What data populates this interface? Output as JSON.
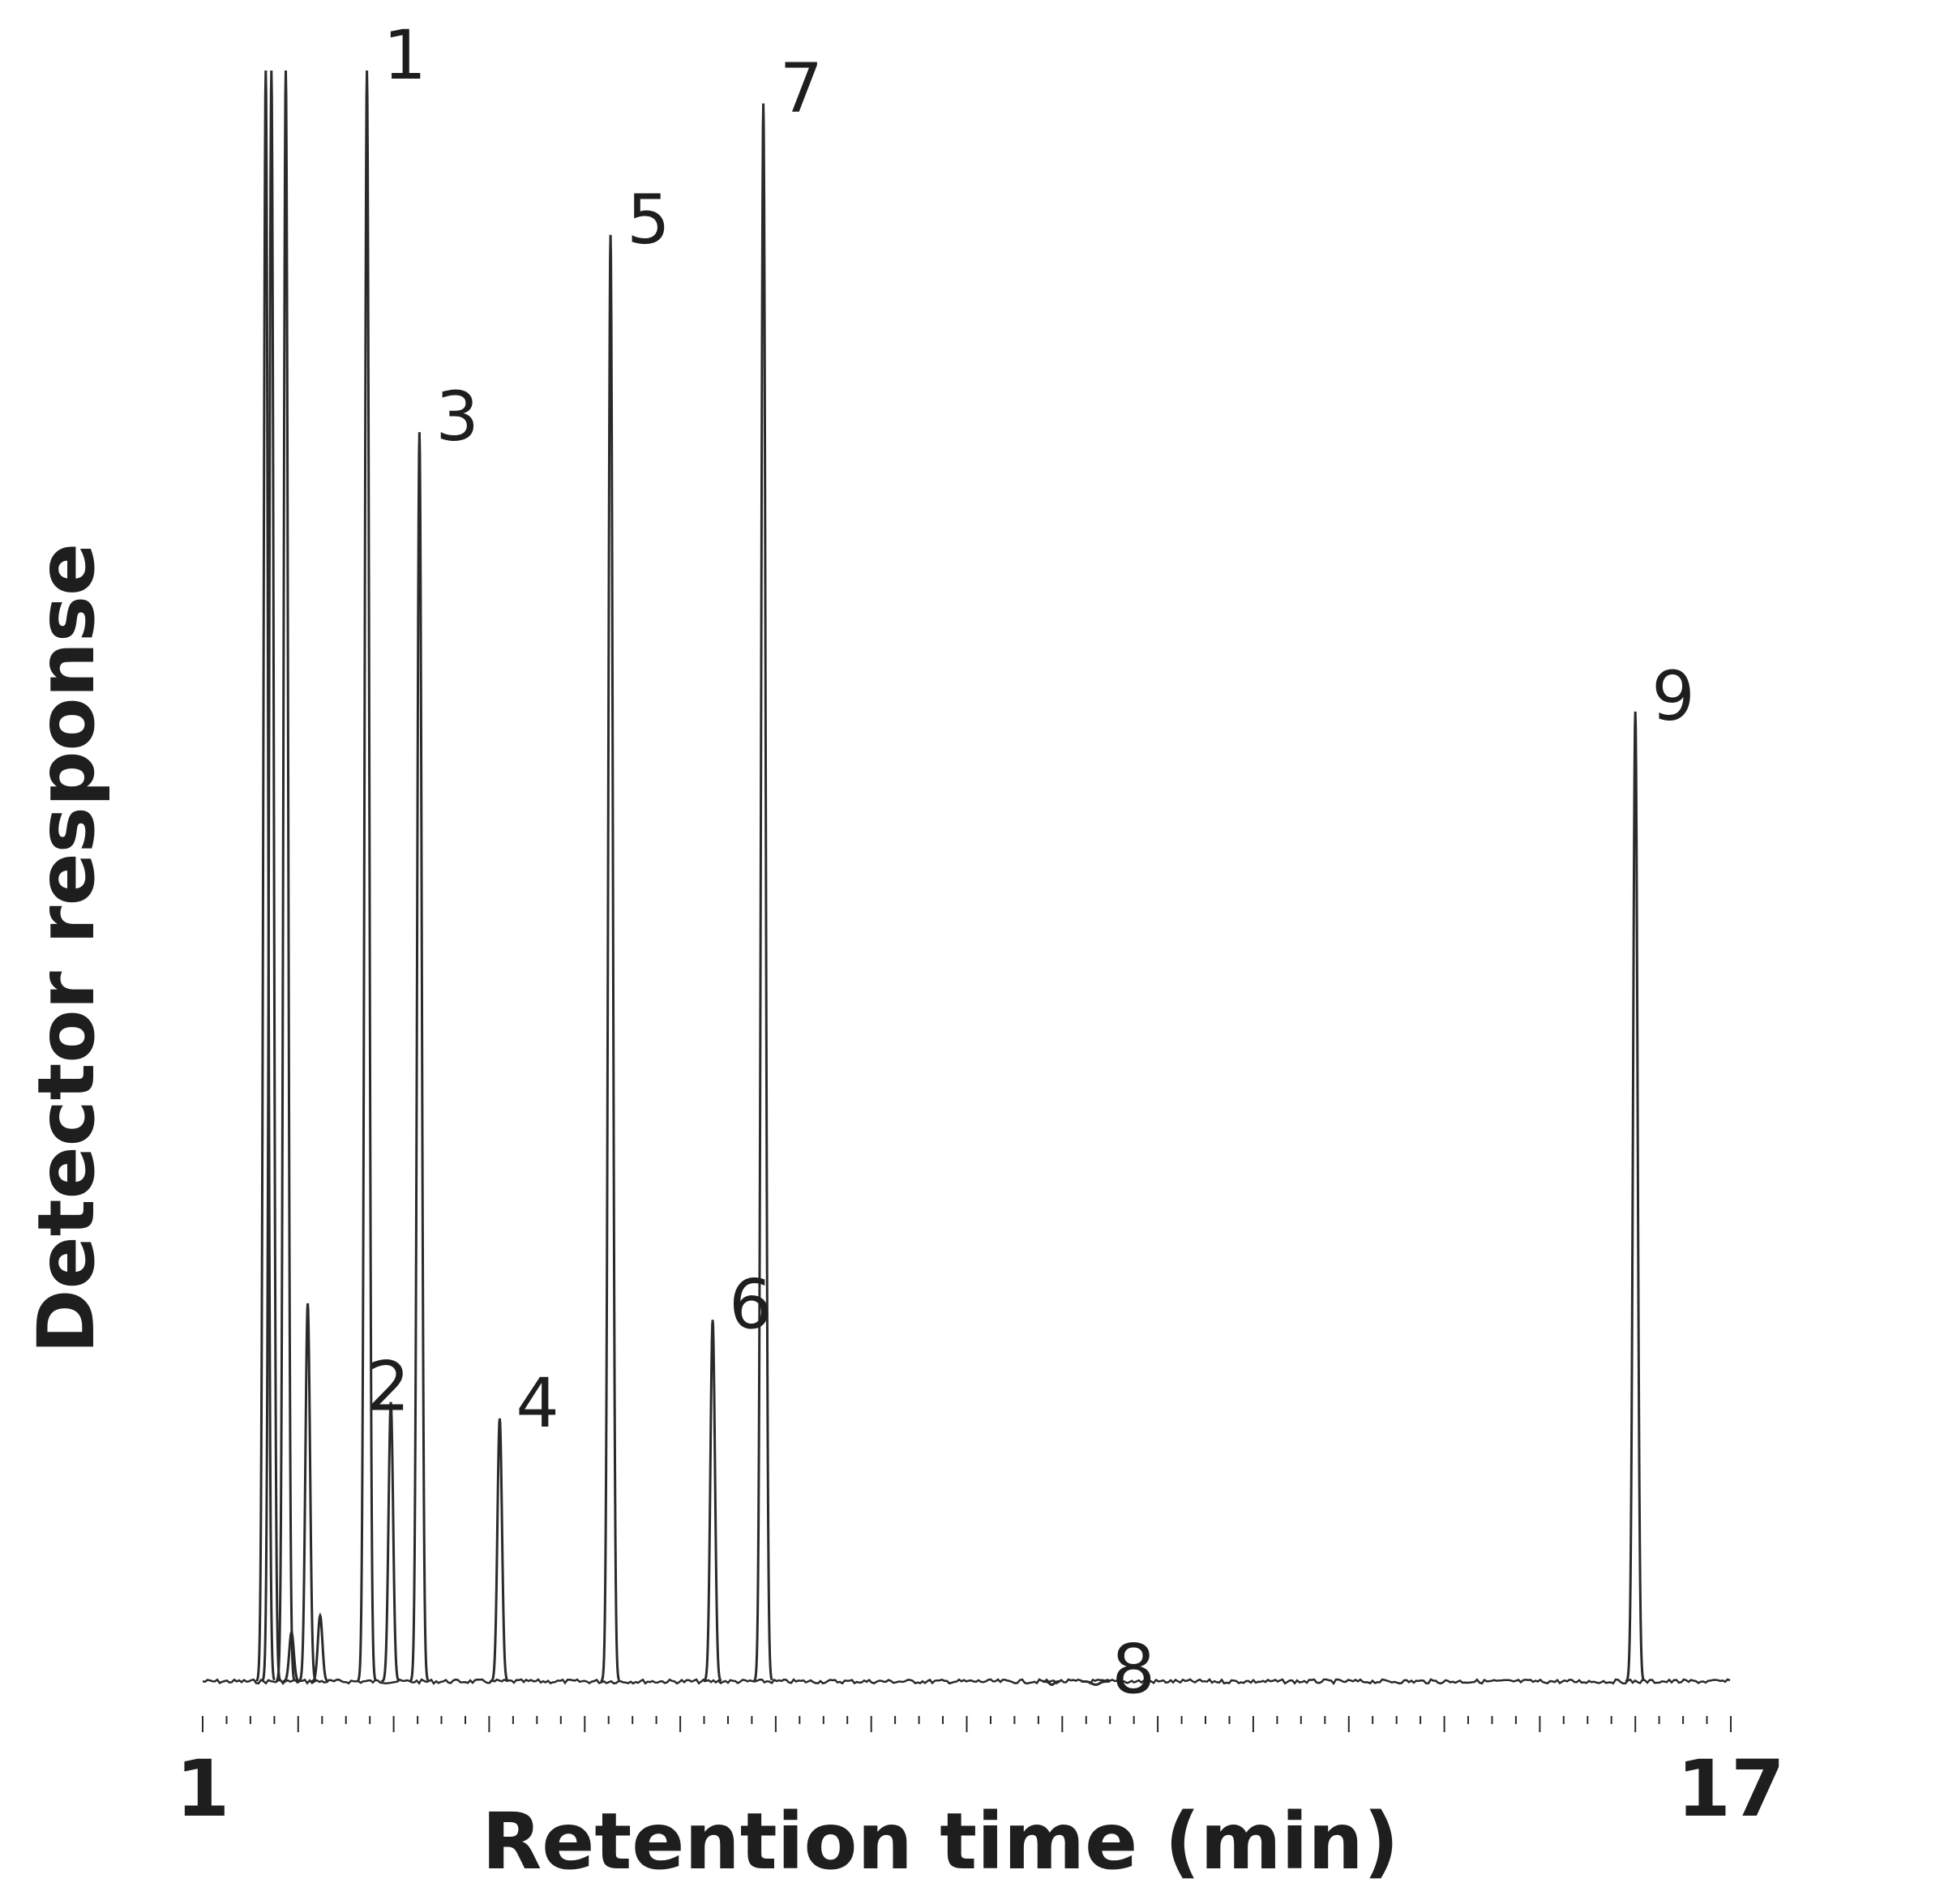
{
  "colors": {
    "trace": "#2a2a2a",
    "text": "#1e1e1e",
    "background": "#ffffff"
  },
  "chart_data": {
    "type": "line",
    "title": "",
    "xlabel": "Retention time (min)",
    "ylabel": "Detector response",
    "xlim": [
      1,
      17
    ],
    "ylim": [
      0,
      100
    ],
    "grid": false,
    "legend": "none",
    "x_tick_labels": [
      {
        "value": 1,
        "label": "1"
      },
      {
        "value": 17,
        "label": "17"
      }
    ],
    "minor_tick_step_min": 0.25,
    "baseline": 2.0,
    "peaks": [
      {
        "label": "",
        "x": 1.66,
        "height": 100,
        "width": 0.012,
        "clipped": true
      },
      {
        "label": "",
        "x": 1.72,
        "height": 100,
        "width": 0.012,
        "clipped": true
      },
      {
        "label": "",
        "x": 1.87,
        "height": 100,
        "width": 0.012,
        "clipped": true
      },
      {
        "label": "",
        "x": 1.93,
        "height": 5,
        "width": 0.02
      },
      {
        "label": "",
        "x": 2.1,
        "height": 25,
        "width": 0.012
      },
      {
        "label": "",
        "x": 2.23,
        "height": 6,
        "width": 0.012
      },
      {
        "label": "1",
        "x": 2.72,
        "height": 100,
        "width": 0.012,
        "clipped": true
      },
      {
        "label": "2",
        "x": 2.97,
        "height": 19,
        "width": 0.012
      },
      {
        "label": "3",
        "x": 3.27,
        "height": 78,
        "width": 0.012
      },
      {
        "label": "4",
        "x": 4.11,
        "height": 18,
        "width": 0.014
      },
      {
        "label": "5",
        "x": 5.27,
        "height": 90,
        "width": 0.014
      },
      {
        "label": "6",
        "x": 6.34,
        "height": 24,
        "width": 0.016
      },
      {
        "label": "7",
        "x": 6.87,
        "height": 98,
        "width": 0.016
      },
      {
        "label": "",
        "x": 9.89,
        "height": 1.8,
        "width": 0.04
      },
      {
        "label": "8",
        "x": 10.35,
        "height": 1.8,
        "width": 0.07
      },
      {
        "label": "9",
        "x": 16.0,
        "height": 61,
        "width": 0.03
      }
    ]
  }
}
